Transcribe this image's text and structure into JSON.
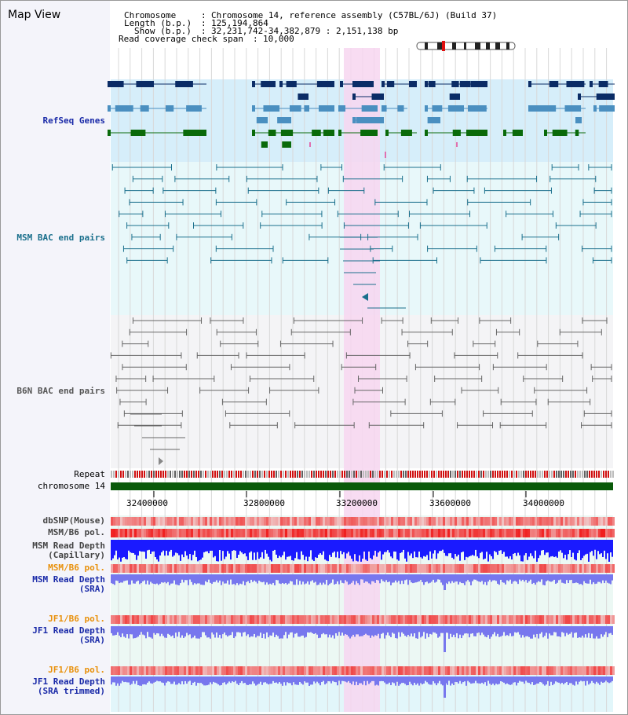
{
  "window": {
    "title": "Map View"
  },
  "info": {
    "chromosome_label": "Chromosome",
    "chromosome_value": "Chromosome 14, reference assembly (C57BL/6J) (Build 37)",
    "length_label": "Length (b.p.)",
    "length_value": "125,194,864",
    "show_label": "Show (b.p.)",
    "show_value": "32,231,742-34,382,879 : 2,151,138 bp",
    "coverage_label": "Read coverage check span",
    "coverage_value": "10,000"
  },
  "tracks": {
    "refseq": "RefSeq Genes",
    "msm_bac": "MSM BAC end pairs",
    "b6n_bac": "B6N BAC end pairs",
    "repeat": "Repeat",
    "chromosome": "chromosome 14",
    "dbsnp": "dbSNP(Mouse)",
    "msm_b6_pol": "MSM/B6 pol.",
    "msm_depth_cap_1": "MSM Read Depth",
    "msm_depth_cap_2": "(Capillary)",
    "msm_b6_pol_2": "MSM/B6 pol.",
    "msm_depth_sra_1": "MSM Read Depth",
    "msm_depth_sra_2": "(SRA)",
    "jf1_b6_pol": "JF1/B6 pol.",
    "jf1_depth_sra_1": "JF1 Read Depth",
    "jf1_depth_sra_2": "(SRA)",
    "jf1_b6_pol_2": "JF1/B6 pol.",
    "jf1_depth_trim_1": "JF1 Read Depth",
    "jf1_depth_trim_2": "(SRA trimmed)"
  },
  "axis": {
    "ticks": [
      "32400000",
      "32800000",
      "33200000",
      "33600000",
      "34000000"
    ]
  },
  "colors": {
    "refseq_dark": "#0b2c66",
    "refseq_light": "#4a8fc0",
    "refseq_green": "#0a6a0a",
    "highlight": "#f7d6f0",
    "msm_line": "#1a6f8c",
    "b6n_line": "#666666",
    "chromosome_bar": "#0a5a0a",
    "depth_blue": "#1a1aff",
    "depth_purple": "#7777ee"
  }
}
